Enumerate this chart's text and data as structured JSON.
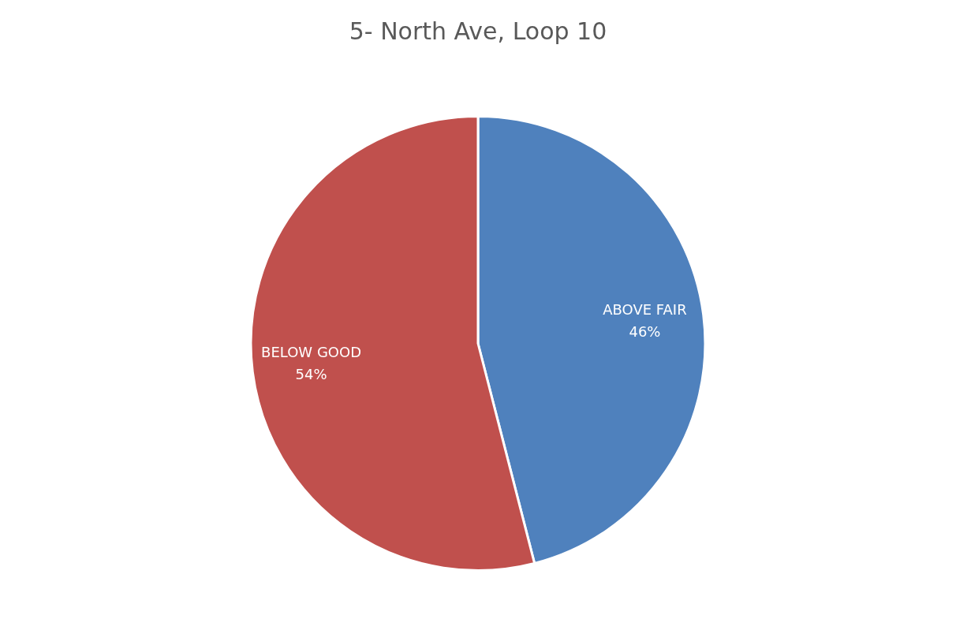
{
  "chart_data": {
    "type": "pie",
    "title": "5- North Ave, Loop 10",
    "categories": [
      "ABOVE FAIR",
      "BELOW GOOD"
    ],
    "values": [
      46,
      54
    ],
    "colors": [
      "#4f81bd",
      "#c0504d"
    ],
    "value_labels": [
      "46%",
      "54%"
    ],
    "legend": false
  }
}
